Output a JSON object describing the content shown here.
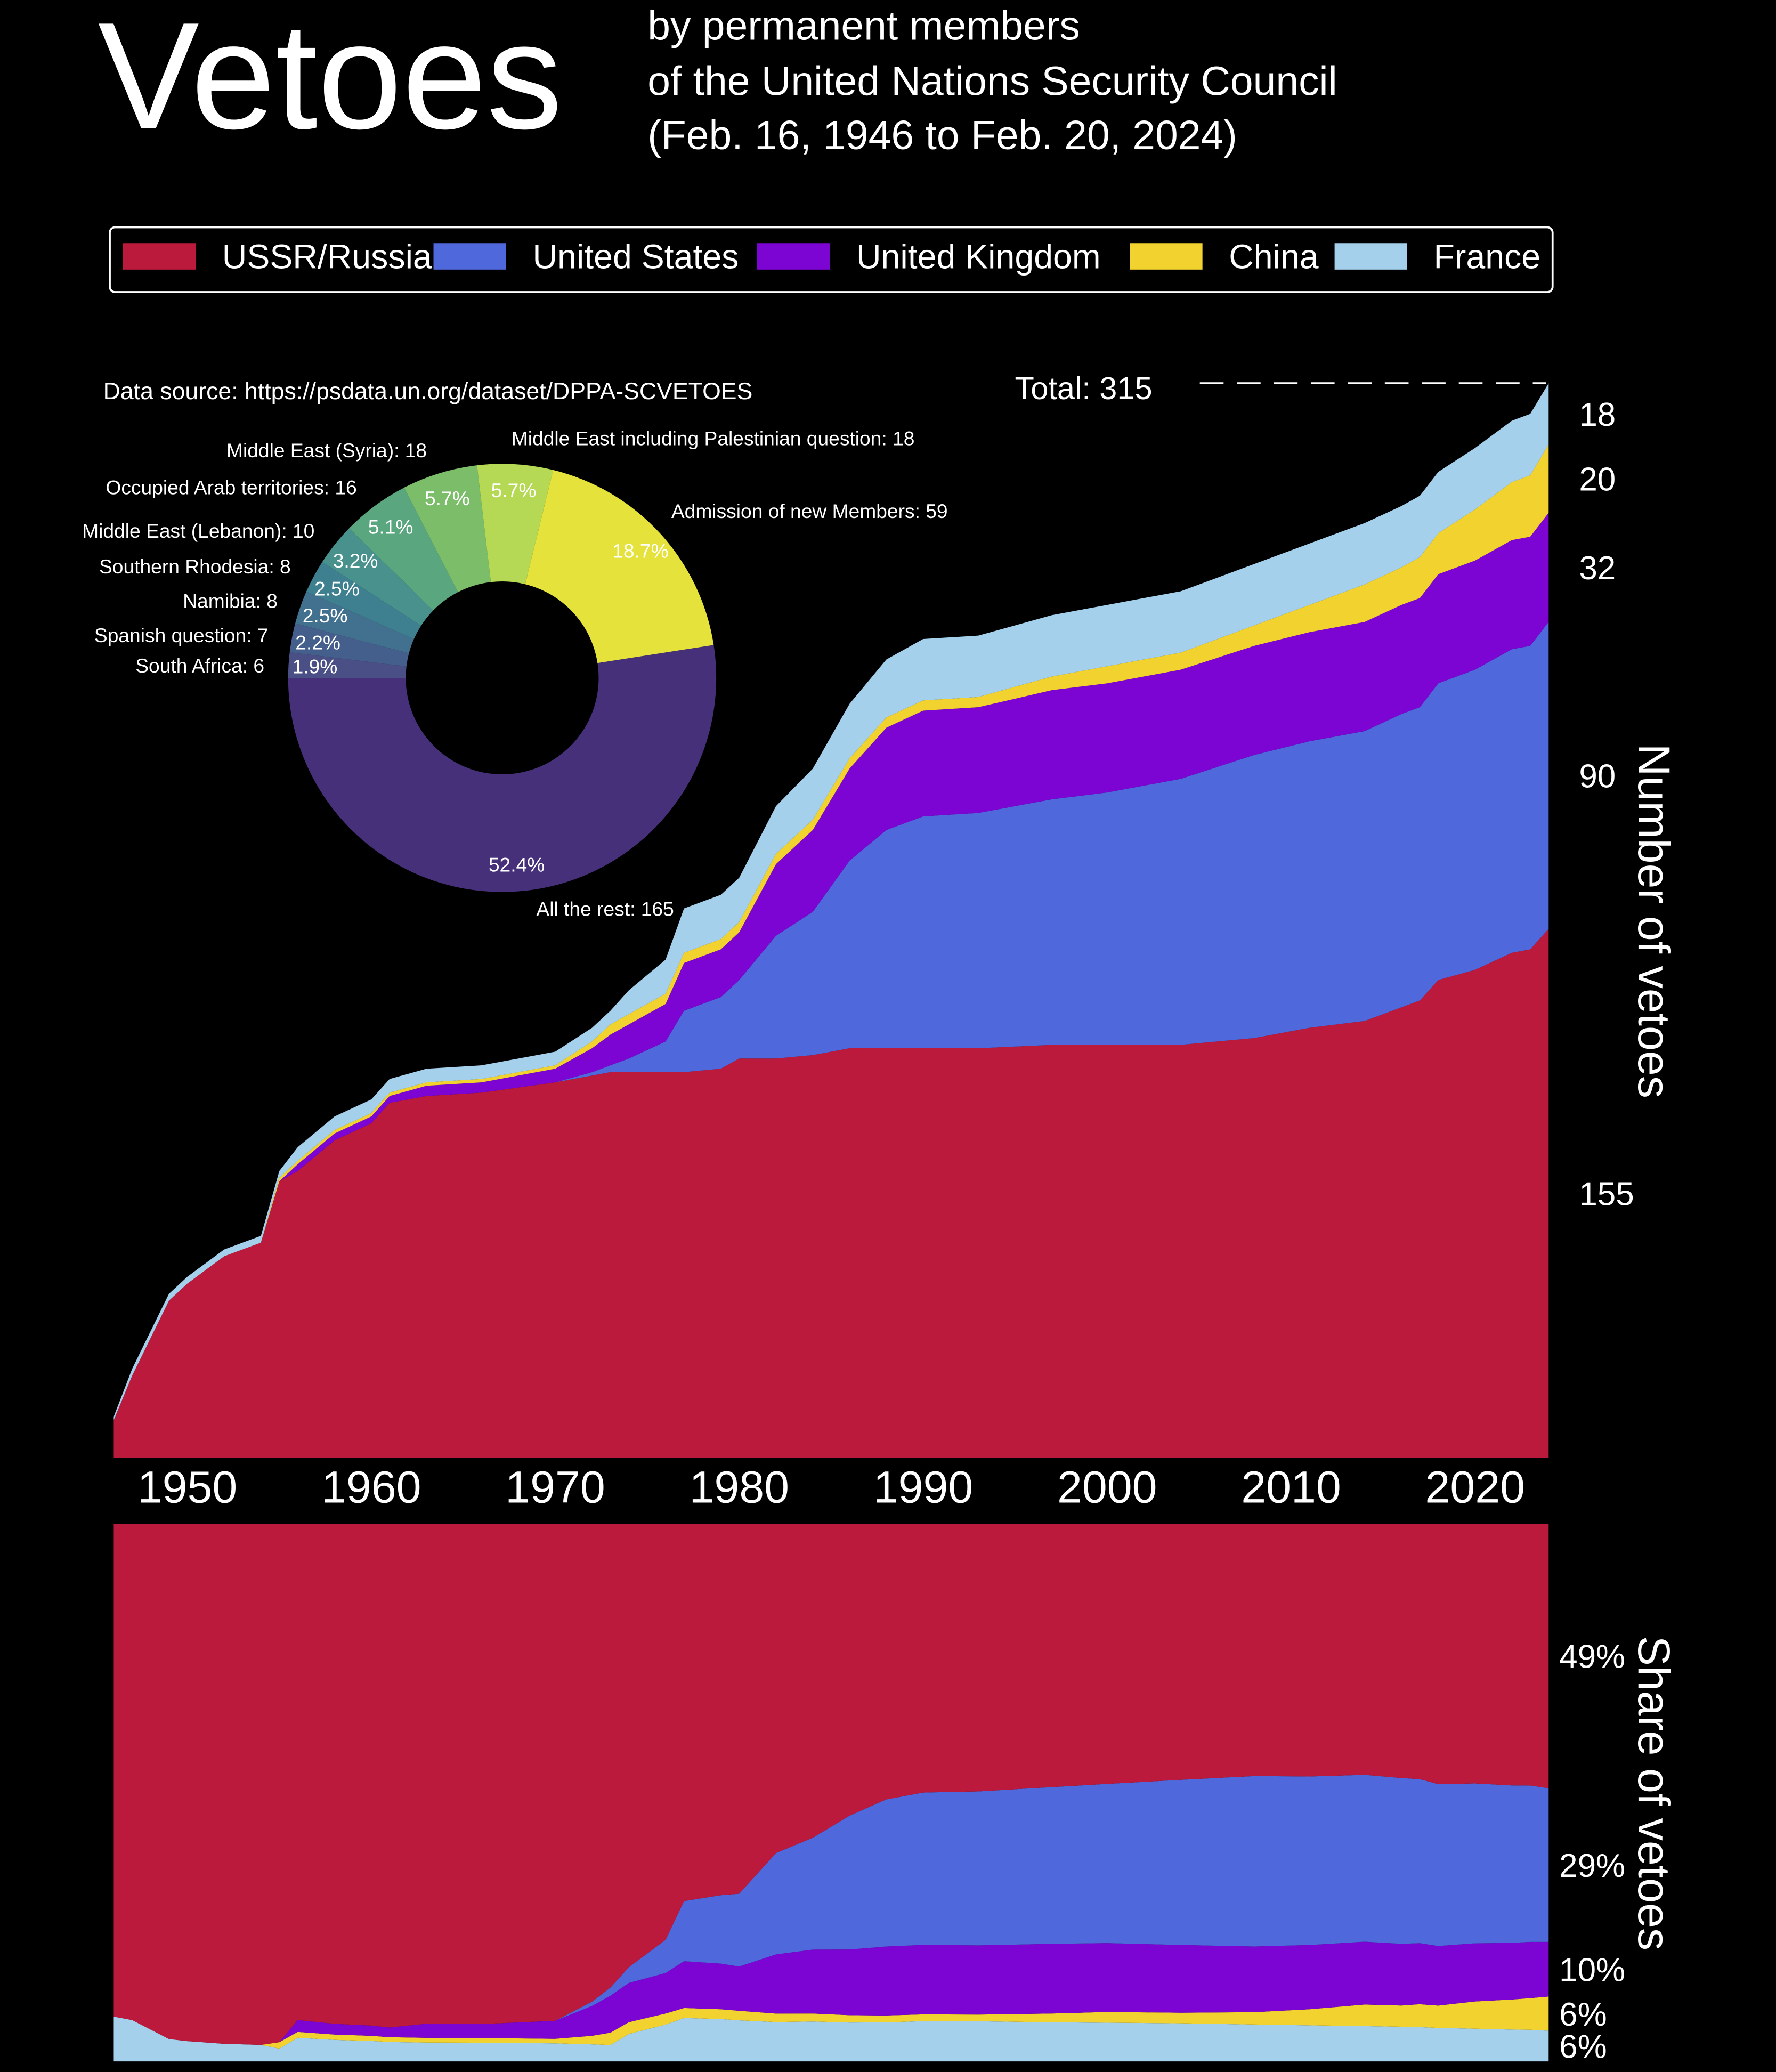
{
  "chart_data": [
    {
      "type": "area",
      "title": "Vetoes",
      "subtitle": [
        "by permanent members",
        "of the United Nations Security Council",
        "(Feb. 16, 1946 to Feb. 20, 2024)"
      ],
      "source": "Data source: https://psdata.un.org/dataset/DPPA-SCVETOES",
      "total_label": "Total: 315",
      "ylabel": "Number of vetoes",
      "share_ylabel": "Share of vetoes",
      "share_labels": [
        "49%",
        "29%",
        "10%",
        "6%",
        "6%"
      ],
      "x": [
        1946,
        1947,
        1949,
        1950,
        1952,
        1954,
        1955,
        1956,
        1958,
        1960,
        1961,
        1963,
        1966,
        1970,
        1972,
        1973,
        1974,
        1976,
        1977,
        1979,
        1980,
        1982,
        1984,
        1986,
        1988,
        1990,
        1993,
        1997,
        2000,
        2004,
        2008,
        2011,
        2014,
        2016,
        2017,
        2018,
        2020,
        2022,
        2023,
        2024
      ],
      "xlim": [
        1946,
        2024
      ],
      "xticks": [
        1950,
        1960,
        1970,
        1980,
        1990,
        2000,
        2010,
        2020
      ],
      "ylim": [
        0,
        315
      ],
      "series": [
        {
          "name": "USSR/Russia",
          "color": "#bc1a3c",
          "values": [
            11,
            24,
            46,
            51,
            59,
            63,
            81,
            84,
            93,
            98,
            104,
            106,
            107,
            110,
            112,
            113,
            113,
            113,
            113,
            114,
            117,
            117,
            118,
            120,
            120,
            120,
            120,
            121,
            121,
            121,
            123,
            126,
            128,
            132,
            134,
            140,
            143,
            148,
            149,
            155
          ]
        },
        {
          "name": "United States",
          "color": "#4f68dc",
          "values": [
            0,
            0,
            0,
            0,
            0,
            0,
            0,
            0,
            0,
            0,
            0,
            0,
            0,
            0,
            1,
            2,
            4,
            9,
            18,
            21,
            23,
            36,
            42,
            55,
            64,
            68,
            69,
            72,
            74,
            78,
            83,
            84,
            85,
            86,
            86,
            87,
            88,
            89,
            89,
            90
          ]
        },
        {
          "name": "United Kingdom",
          "color": "#7d05d4",
          "values": [
            0,
            0,
            0,
            0,
            0,
            0,
            0,
            2,
            2,
            2,
            2,
            3,
            3,
            4,
            7,
            9,
            10,
            11,
            14,
            14,
            14,
            21,
            24,
            27,
            30,
            31,
            31,
            32,
            32,
            32,
            32,
            32,
            32,
            32,
            32,
            32,
            32,
            32,
            32,
            32
          ]
        },
        {
          "name": "China",
          "color": "#f2d22e",
          "values": [
            0,
            0,
            0,
            0,
            0,
            0,
            1,
            1,
            1,
            1,
            1,
            1,
            1,
            1,
            2,
            3,
            3,
            3,
            3,
            3,
            3,
            3,
            3,
            3,
            3,
            3,
            3,
            4,
            5,
            5,
            6,
            8,
            11,
            11,
            12,
            12,
            15,
            17,
            18,
            20
          ]
        },
        {
          "name": "France",
          "color": "#a4d0ec",
          "values": [
            1,
            2,
            2,
            2,
            2,
            2,
            2,
            4,
            4,
            4,
            4,
            4,
            4,
            4,
            4,
            4,
            7,
            10,
            13,
            13,
            13,
            14,
            15,
            16,
            17,
            18,
            18,
            18,
            18,
            18,
            18,
            18,
            18,
            18,
            18,
            18,
            18,
            18,
            18,
            18
          ]
        }
      ]
    },
    {
      "type": "pie",
      "categories": [
        "South Africa: 6",
        "Spanish question: 7",
        "Namibia: 8",
        "Southern Rhodesia: 8",
        "Middle East (Lebanon): 10",
        "Occupied Arab territories: 16",
        "Middle East (Syria): 18",
        "Middle East including Palestinian question: 18",
        "Admission of new Members: 59",
        "All the rest: 165"
      ],
      "values": [
        1.9,
        2.2,
        2.5,
        2.5,
        3.2,
        5.1,
        5.7,
        5.7,
        18.7,
        52.4
      ],
      "value_labels": [
        "1.9%",
        "2.2%",
        "2.5%",
        "2.5%",
        "3.2%",
        "5.1%",
        "5.7%",
        "5.7%",
        "18.7%",
        "52.4%"
      ],
      "colors": [
        "#4a4f86",
        "#455f8c",
        "#42718f",
        "#3f8090",
        "#48918c",
        "#5aa67e",
        "#7cbd69",
        "#b5d955",
        "#e5e23b",
        "#46307a"
      ]
    }
  ]
}
